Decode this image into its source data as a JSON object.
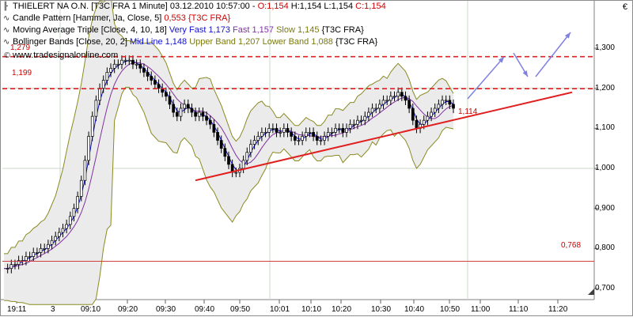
{
  "header": {
    "title_prefix": "THIELERT NA O.N. [T3C FRA  1 Minute] 03.12.2010 10:57:00 -",
    "ohlc": {
      "o": "O:1,154",
      "h": "H:1,154",
      "l": "L:1,154",
      "c": "C:1,154"
    },
    "candle_pattern": {
      "label": "Candle Pattern [Hammer, Ja, Close, 5]",
      "value": "0,553 {T3C FRA}"
    },
    "mat": {
      "label": "Moving Average Triple [Close, 4, 10, 18]",
      "very_fast": "Very Fast 1,173",
      "fast": "Fast 1,157",
      "slow": "Slow 1,145",
      "suffix": "{T3C FRA}"
    },
    "bollinger": {
      "label": "Bollinger Bands [Close, 20, 2]",
      "mid": "Mid Line 1,148",
      "upper": "Upper Band 1,207",
      "lower": "Lower Band 1,088",
      "suffix": "{T3C FRA}"
    },
    "watermark": "www.tradesignalonline.com"
  },
  "currency": "€",
  "levels": {
    "l1279": "1,279",
    "l1199": "1,199",
    "l1114": "1,114",
    "l0768": "0,768"
  },
  "colors": {
    "red": "#e02020",
    "blue": "#1010d0",
    "olive": "#8a8a20",
    "purple": "#8030a0",
    "band_fill": "#ebebeb",
    "arrow": "#8080e0"
  },
  "chart_data": {
    "type": "candlestick",
    "y_axis_labels": [
      "1,300",
      "1,200",
      "1,100",
      "1,000",
      "0,900",
      "0,800",
      "0,700"
    ],
    "x_axis_labels": [
      "19:11",
      "3",
      "09:10",
      "09:20",
      "09:30",
      "09:40",
      "09:50",
      "10:01",
      "10:10",
      "10:20",
      "10:30",
      "10:40",
      "10:50",
      "11:00",
      "11:10",
      "11:20"
    ],
    "ylim": [
      0.67,
      1.33
    ],
    "horizontal_levels": [
      1.279,
      1.199,
      0.768
    ],
    "support_trendline": {
      "from_value": 0.97,
      "to_value": 1.19
    },
    "price_path": [
      0.75,
      0.75,
      0.76,
      0.76,
      0.77,
      0.77,
      0.78,
      0.78,
      0.79,
      0.79,
      0.8,
      0.8,
      0.81,
      0.82,
      0.83,
      0.84,
      0.85,
      0.86,
      0.88,
      0.9,
      0.93,
      0.97,
      1.02,
      1.08,
      1.13,
      1.17,
      1.2,
      1.22,
      1.24,
      1.25,
      1.26,
      1.26,
      1.27,
      1.27,
      1.27,
      1.26,
      1.26,
      1.25,
      1.24,
      1.23,
      1.22,
      1.21,
      1.2,
      1.19,
      1.18,
      1.16,
      1.14,
      1.13,
      1.15,
      1.16,
      1.15,
      1.14,
      1.13,
      1.14,
      1.13,
      1.12,
      1.11,
      1.09,
      1.07,
      1.05,
      1.03,
      1.01,
      0.99,
      0.99,
      1.0,
      1.02,
      1.04,
      1.06,
      1.07,
      1.08,
      1.09,
      1.09,
      1.1,
      1.1,
      1.09,
      1.09,
      1.1,
      1.09,
      1.08,
      1.07,
      1.07,
      1.08,
      1.09,
      1.09,
      1.08,
      1.07,
      1.07,
      1.08,
      1.09,
      1.09,
      1.1,
      1.1,
      1.09,
      1.1,
      1.11,
      1.11,
      1.12,
      1.12,
      1.13,
      1.14,
      1.15,
      1.15,
      1.16,
      1.17,
      1.17,
      1.18,
      1.18,
      1.19,
      1.18,
      1.17,
      1.15,
      1.12,
      1.1,
      1.11,
      1.12,
      1.13,
      1.14,
      1.15,
      1.16,
      1.17,
      1.17,
      1.16,
      1.15
    ]
  }
}
